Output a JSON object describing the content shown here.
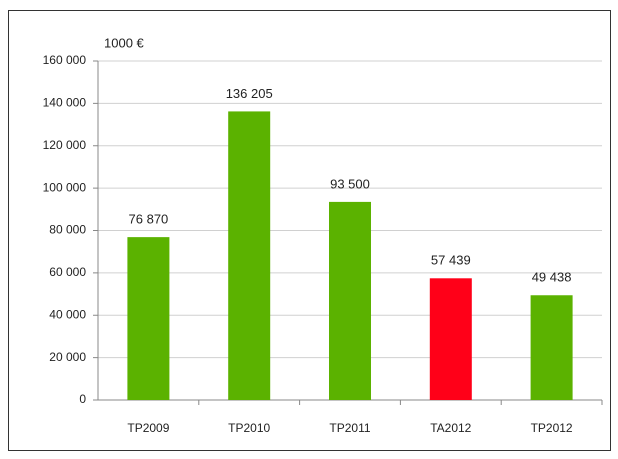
{
  "chart_data": {
    "type": "bar",
    "unit_label": "1000 €",
    "categories": [
      "TP2009",
      "TP2010",
      "TP2011",
      "TA2012",
      "TP2012"
    ],
    "values": [
      76870,
      136205,
      93500,
      57439,
      49438
    ],
    "value_labels": [
      "76 870",
      "136 205",
      "93 500",
      "57 439",
      "49 438"
    ],
    "colors": [
      "#5bb200",
      "#5bb200",
      "#5bb200",
      "#ff0018",
      "#5bb200"
    ],
    "ylim": [
      0,
      160000
    ],
    "yticks": [
      0,
      {
        "value": 20000,
        "label": "20 000"
      },
      {
        "value": 40000,
        "label": "40 000"
      },
      {
        "value": 60000,
        "label": "60 000"
      },
      {
        "value": 80000,
        "label": "80 000"
      },
      {
        "value": 100000,
        "label": "100 000"
      },
      {
        "value": 120000,
        "label": "120 000"
      },
      {
        "value": 140000,
        "label": "140 000"
      },
      {
        "value": 160000,
        "label": "160 000"
      }
    ],
    "grid": true
  }
}
